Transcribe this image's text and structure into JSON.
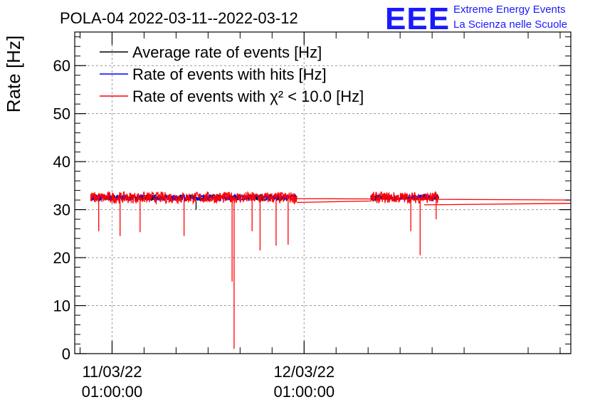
{
  "chart_data": {
    "type": "line",
    "title": "POLA-04 2022-03-11--2022-03-12",
    "ylabel": "Rate [Hz]",
    "xlabel": "",
    "ylim": [
      0,
      67
    ],
    "xlim": [
      "2022-03-10T20:20:00",
      "2022-03-13T10:20:00"
    ],
    "y_ticks": [
      0,
      10,
      20,
      30,
      40,
      50,
      60
    ],
    "x_ticks": [
      {
        "t": "2022-03-11T01:00:00",
        "date": "11/03/22",
        "time": "01:00:00"
      },
      {
        "t": "2022-03-12T01:00:00",
        "date": "12/03/22",
        "time": "01:00:00"
      }
    ],
    "grid": true,
    "legend_position": "top-left",
    "series": [
      {
        "name": "Average rate of events [Hz]",
        "color": "#000000",
        "baseline": 32.5,
        "segments": [
          [
            "2022-03-10T22:20:00",
            "2022-03-12T00:05:00"
          ],
          [
            "2022-03-12T09:20:00",
            "2022-03-12T17:50:00"
          ]
        ],
        "dips": [
          {
            "t": "2022-03-11T11:30:00",
            "v": 30.0
          }
        ]
      },
      {
        "name": "Rate of events with hits [Hz]",
        "color": "#0000ff",
        "baseline": 32.5,
        "segments": [
          [
            "2022-03-10T22:20:00",
            "2022-03-12T00:05:00"
          ],
          [
            "2022-03-12T09:20:00",
            "2022-03-12T17:50:00"
          ]
        ],
        "dips": []
      },
      {
        "name": "Rate of events with χ² < 10.0 [Hz]",
        "color": "#ff0000",
        "baseline": 32.5,
        "noise": 1.2,
        "segments": [
          [
            "2022-03-10T22:20:00",
            "2022-03-12T00:05:00"
          ],
          [
            "2022-03-12T09:20:00",
            "2022-03-12T17:50:00"
          ]
        ],
        "dips": [
          {
            "t": "2022-03-10T23:20:00",
            "v": 25.5
          },
          {
            "t": "2022-03-11T02:00:00",
            "v": 24.5
          },
          {
            "t": "2022-03-11T04:30:00",
            "v": 25.3
          },
          {
            "t": "2022-03-11T10:00:00",
            "v": 24.5
          },
          {
            "t": "2022-03-11T16:00:00",
            "v": 15.0
          },
          {
            "t": "2022-03-11T16:15:00",
            "v": 1.0
          },
          {
            "t": "2022-03-11T18:30:00",
            "v": 25.5
          },
          {
            "t": "2022-03-11T19:30:00",
            "v": 21.5
          },
          {
            "t": "2022-03-11T21:30:00",
            "v": 22.5
          },
          {
            "t": "2022-03-11T23:00:00",
            "v": 22.7
          },
          {
            "t": "2022-03-12T14:20:00",
            "v": 25.5
          },
          {
            "t": "2022-03-12T15:30:00",
            "v": 20.5
          },
          {
            "t": "2022-03-12T17:30:00",
            "v": 28.0
          }
        ],
        "gap_lines": [
          {
            "from_t": "2022-03-12T00:05:00",
            "from_v": 32.3,
            "to_t": "2022-03-13T10:20:00",
            "to_v": 32.0
          },
          {
            "from_t": "2022-03-12T00:05:00",
            "from_v": 31.5,
            "to_t": "2022-03-12T09:20:00",
            "to_v": 31.8
          },
          {
            "from_t": "2022-03-12T16:00:00",
            "from_v": 31.0,
            "to_t": "2022-03-13T10:20:00",
            "to_v": 31.3
          }
        ]
      }
    ]
  },
  "logo": {
    "mark": "EEE",
    "line1": "Extreme Energy Events",
    "line2": "La Scienza nelle Scuole"
  }
}
